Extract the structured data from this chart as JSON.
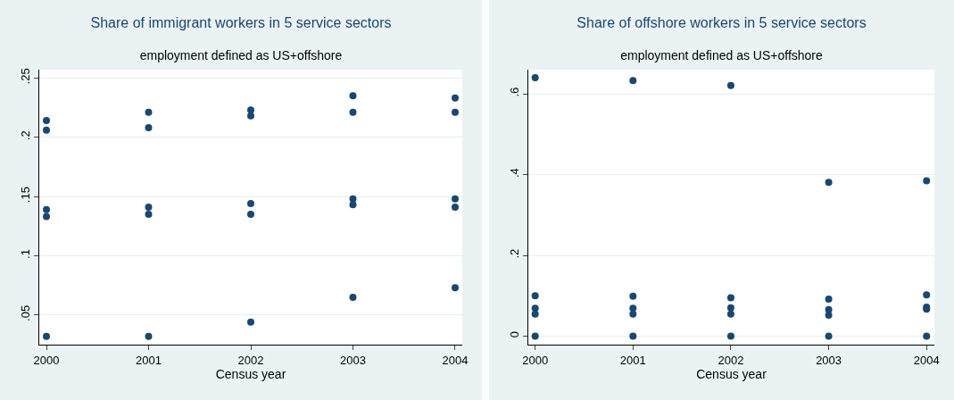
{
  "chart_data": [
    {
      "type": "scatter",
      "title": "Share of immigrant workers in 5 service sectors",
      "subtitle": "employment defined as US+offshore",
      "xlabel": "Census year",
      "color": "#1a476f",
      "marker": "circle",
      "grid": "y",
      "x": [
        2000,
        2000,
        2000,
        2000,
        2000,
        2001,
        2001,
        2001,
        2001,
        2001,
        2002,
        2002,
        2002,
        2002,
        2002,
        2003,
        2003,
        2003,
        2003,
        2003,
        2004,
        2004,
        2004,
        2004,
        2004
      ],
      "values": [
        0.214,
        0.206,
        0.139,
        0.133,
        0.032,
        0.221,
        0.208,
        0.141,
        0.135,
        0.032,
        0.223,
        0.218,
        0.144,
        0.135,
        0.044,
        0.235,
        0.221,
        0.148,
        0.143,
        0.065,
        0.233,
        0.221,
        0.148,
        0.141,
        0.073
      ],
      "xlim": [
        1999.93,
        2004.07
      ],
      "xticks": [
        2000,
        2001,
        2002,
        2003,
        2004
      ],
      "ylim": [
        0.025,
        0.257
      ],
      "yticks": [
        {
          "value": 0.05,
          "label": ".05"
        },
        {
          "value": 0.1,
          "label": ".1"
        },
        {
          "value": 0.15,
          "label": ".15"
        },
        {
          "value": 0.2,
          "label": ".2"
        },
        {
          "value": 0.25,
          "label": ".25"
        }
      ]
    },
    {
      "type": "scatter",
      "title": "Share of offshore workers in 5 service sectors",
      "subtitle": "employment defined as US+offshore",
      "xlabel": "Census year",
      "color": "#1a476f",
      "marker": "circle",
      "grid": "y",
      "x": [
        2000,
        2000,
        2000,
        2000,
        2000,
        2001,
        2001,
        2001,
        2001,
        2001,
        2002,
        2002,
        2002,
        2002,
        2002,
        2003,
        2003,
        2003,
        2003,
        2003,
        2004,
        2004,
        2004,
        2004,
        2004
      ],
      "values": [
        0.64,
        0.1,
        0.069,
        0.055,
        0,
        0.633,
        0.099,
        0.069,
        0.055,
        0,
        0.621,
        0.095,
        0.07,
        0.055,
        0,
        0.381,
        0.092,
        0.066,
        0.052,
        0,
        0.385,
        0.102,
        0.072,
        0.067,
        0
      ],
      "xlim": [
        1999.93,
        2004.08
      ],
      "xticks": [
        2000,
        2001,
        2002,
        2003,
        2004
      ],
      "ylim": [
        -0.021,
        0.66
      ],
      "yticks": [
        0,
        {
          "value": 0.2,
          "label": ".2"
        },
        {
          "value": 0.4,
          "label": ".4"
        },
        {
          "value": 0.6,
          "label": ".6"
        }
      ]
    }
  ]
}
